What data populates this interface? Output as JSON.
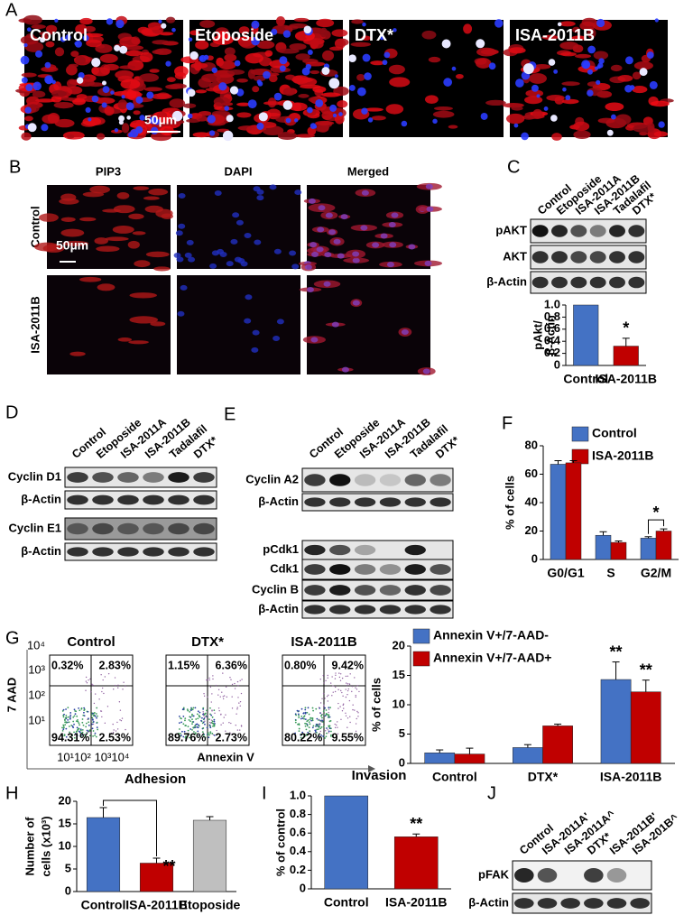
{
  "panels": {
    "A": {
      "letter": "A",
      "images": [
        "Control",
        "Etoposide",
        "DTX*",
        "ISA-2011B"
      ],
      "scale": "50µm"
    },
    "B": {
      "letter": "B",
      "columns": [
        "PIP3",
        "DAPI",
        "Merged"
      ],
      "rows": [
        "Control",
        "ISA-2011B"
      ],
      "scale": "50µm"
    },
    "C": {
      "letter": "C",
      "lanes": [
        "Control",
        "Etoposide",
        "ISA-2011A",
        "ISA-2011B",
        "Tadalafil",
        "DTX*"
      ],
      "blots": [
        "pAKT",
        "AKT",
        "β-Actin"
      ]
    },
    "D": {
      "letter": "D",
      "lanes": [
        "Control",
        "Etoposide",
        "ISA-2011A",
        "ISA-2011B",
        "Tadalafil",
        "DTX*"
      ],
      "blots": [
        "Cyclin D1",
        "β-Actin",
        "Cyclin E1",
        "β-Actin"
      ]
    },
    "E": {
      "letter": "E",
      "lanes": [
        "Control",
        "Etoposide",
        "ISA-2011A",
        "ISA-2011B",
        "Tadalafil",
        "DTX*"
      ],
      "blots": [
        "Cyclin A2",
        "β-Actin",
        "pCdk1",
        "Cdk1",
        "Cyclin B",
        "β-Actin"
      ]
    },
    "F": {
      "letter": "F"
    },
    "G": {
      "letter": "G",
      "y_axis": "7 AAD",
      "x_axis": "Annexin V",
      "y_ticks": [
        "10⁴",
        "10³",
        "10²",
        "10¹"
      ],
      "x_ticks": [
        "10¹10²",
        "10³10⁴"
      ],
      "plots": [
        {
          "title": "Control",
          "quadrants": [
            "0.32%",
            "2.83%",
            "94.31%",
            "2.53%"
          ]
        },
        {
          "title": "DTX*",
          "quadrants": [
            "1.15%",
            "6.36%",
            "89.76%",
            "2.73%"
          ]
        },
        {
          "title": "ISA-2011B",
          "quadrants": [
            "0.80%",
            "9.42%",
            "80.22%",
            "9.55%"
          ]
        }
      ]
    },
    "H": {
      "letter": "H"
    },
    "I": {
      "letter": "I"
    },
    "J": {
      "letter": "J",
      "lanes": [
        "Control",
        "ISA-2011A'",
        "ISA-2011A^",
        "DTX*",
        "ISA-2011B'",
        "ISA-201B^"
      ],
      "blots": [
        "pFAK",
        "β-Actin"
      ]
    }
  },
  "chart_data": [
    {
      "type": "bar",
      "ylabel": [
        "pAkt/",
        "β-Actin"
      ],
      "categories": [
        "Control",
        "ISA-2011B"
      ],
      "values": [
        1,
        0.32
      ],
      "errors": [
        0,
        0.13
      ],
      "markers": [
        null,
        "*"
      ],
      "colors": [
        "#4472c4",
        "#c00000"
      ],
      "ylim": [
        0,
        1
      ],
      "yticks": [
        0,
        0.2,
        0.4,
        0.6,
        0.8,
        {
          "value": 1,
          "label": "1.0"
        }
      ]
    },
    {
      "type": "grouped-bar",
      "ylabel": [
        "% of cells"
      ],
      "categories": [
        "G0/G1",
        "S",
        "G2/M"
      ],
      "series": [
        {
          "name": "Control",
          "color": "#4472c4",
          "values": [
            67,
            17,
            15
          ],
          "errors": [
            2.5,
            2.5,
            1
          ]
        },
        {
          "name": "ISA-2011B",
          "color": "#c00000",
          "values": [
            68,
            12,
            20
          ],
          "errors": [
            1.5,
            1,
            1.5
          ]
        }
      ],
      "significance": [
        null,
        null,
        "*"
      ],
      "ylim": [
        0,
        80
      ],
      "yticks": [
        0,
        20,
        40,
        60,
        80
      ]
    },
    {
      "type": "grouped-bar",
      "ylabel": [
        "% of cells"
      ],
      "categories": [
        "Control",
        "DTX*",
        "ISA-2011B"
      ],
      "series": [
        {
          "name": "Annexin V+/7-AAD-",
          "color": "#4472c4",
          "values": [
            1.8,
            2.7,
            14.3
          ],
          "errors": [
            0.5,
            0.5,
            3
          ],
          "markers": [
            null,
            null,
            "**"
          ]
        },
        {
          "name": "Annexin V+/7-AAD+",
          "color": "#c00000",
          "values": [
            1.6,
            6.4,
            12.2
          ],
          "errors": [
            1,
            0.3,
            2
          ],
          "markers": [
            null,
            null,
            "**"
          ]
        }
      ],
      "ylim": [
        0,
        20
      ],
      "yticks": [
        0,
        5,
        10,
        15,
        20
      ]
    },
    {
      "type": "bar",
      "title": "Adhesion",
      "ylabel": [
        "Number of",
        "cells (x10³)"
      ],
      "categories": [
        "Control",
        "ISA-2011B",
        "Etoposide"
      ],
      "values": [
        16.4,
        6.3,
        15.8
      ],
      "errors": [
        2.2,
        1.1,
        0.8
      ],
      "markers": [
        null,
        "**",
        null
      ],
      "bracket": true,
      "colors": [
        "#4472c4",
        "#c00000",
        "#bfbfbf"
      ],
      "ylim": [
        0,
        20
      ],
      "yticks": [
        0,
        5,
        10,
        15,
        20
      ]
    },
    {
      "type": "bar",
      "title": "Invasion",
      "ylabel": [
        "% of control"
      ],
      "categories": [
        "Control",
        "ISA-2011B"
      ],
      "values": [
        1,
        0.56
      ],
      "errors": [
        0,
        0.03
      ],
      "markers": [
        null,
        "**"
      ],
      "colors": [
        "#4472c4",
        "#c00000"
      ],
      "ylim": [
        0,
        1
      ],
      "yticks": [
        0,
        0.2,
        0.4,
        0.6,
        0.8,
        {
          "value": 1,
          "label": "1.0"
        }
      ]
    }
  ]
}
